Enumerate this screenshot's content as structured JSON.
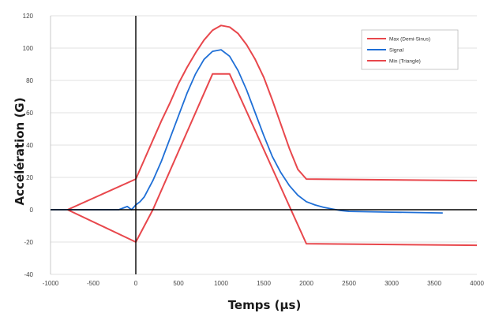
{
  "chart_data": {
    "type": "line",
    "title": "",
    "xlabel": "Temps (µs)",
    "ylabel": "Accélération (G)",
    "xlim": [
      -1000,
      4000
    ],
    "ylim": [
      -40,
      120
    ],
    "x_ticks": [
      -1000,
      -500,
      0,
      500,
      1000,
      1500,
      2000,
      2500,
      3000,
      3500,
      4000
    ],
    "y_ticks": [
      -40,
      -20,
      0,
      20,
      40,
      60,
      80,
      100,
      120
    ],
    "grid": true,
    "legend_position": "top-right",
    "series": [
      {
        "name": "Max (Demi-Sinus)",
        "color": "#e8474c",
        "x": [
          -800,
          0,
          100,
          200,
          300,
          400,
          500,
          600,
          700,
          800,
          900,
          1000,
          1100,
          1200,
          1300,
          1400,
          1500,
          1600,
          1700,
          1800,
          1900,
          2000,
          4000
        ],
        "y": [
          0,
          19,
          31,
          43,
          55,
          66,
          78,
          88,
          97,
          105,
          111,
          114,
          113,
          109,
          102,
          93,
          82,
          68,
          53,
          38,
          25,
          19,
          18
        ]
      },
      {
        "name": "Signal",
        "color": "#1f6fd6",
        "x": [
          -1000,
          -200,
          -100,
          -50,
          0,
          50,
          100,
          200,
          300,
          400,
          500,
          600,
          700,
          800,
          900,
          1000,
          1100,
          1200,
          1300,
          1400,
          1500,
          1600,
          1700,
          1800,
          1900,
          2000,
          2100,
          2200,
          2300,
          2400,
          2500,
          3000,
          3600
        ],
        "y": [
          0,
          0,
          2,
          0,
          3,
          5,
          8,
          18,
          30,
          44,
          58,
          72,
          84,
          93,
          98,
          99,
          95,
          86,
          74,
          60,
          46,
          33,
          23,
          15,
          9,
          5,
          3,
          1.5,
          0.5,
          -0.5,
          -1,
          -1.5,
          -2
        ]
      },
      {
        "name": "Min (Triangle)",
        "color": "#e8474c",
        "x": [
          -800,
          0,
          200,
          900,
          1100,
          2000,
          4000
        ],
        "y": [
          0,
          -20,
          0,
          84,
          84,
          -21,
          -22
        ]
      }
    ]
  }
}
